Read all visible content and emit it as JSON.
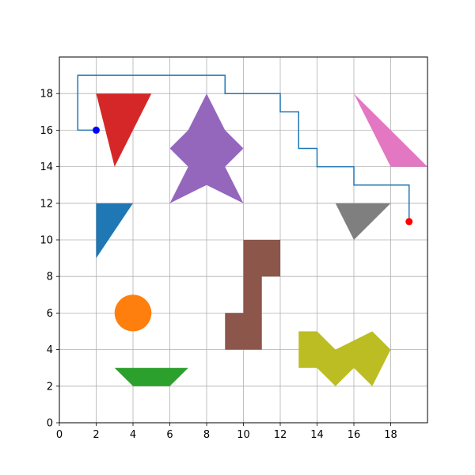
{
  "chart_data": {
    "type": "scatter",
    "title": "",
    "xlabel": "",
    "ylabel": "",
    "xlim": [
      0,
      20
    ],
    "ylim": [
      0,
      20
    ],
    "xticks": [
      0,
      2,
      4,
      6,
      8,
      10,
      12,
      14,
      16,
      18
    ],
    "yticks": [
      0,
      2,
      4,
      6,
      8,
      10,
      12,
      14,
      16,
      18
    ],
    "grid": true,
    "path": {
      "color": "#1f77b4",
      "points": [
        [
          2,
          16
        ],
        [
          1,
          16
        ],
        [
          1,
          19
        ],
        [
          9,
          19
        ],
        [
          9,
          18
        ],
        [
          12,
          18
        ],
        [
          12,
          17
        ],
        [
          13,
          17
        ],
        [
          13,
          15
        ],
        [
          14,
          15
        ],
        [
          14,
          14
        ],
        [
          16,
          14
        ],
        [
          16,
          13
        ],
        [
          19,
          13
        ],
        [
          19,
          11
        ]
      ]
    },
    "start_point": {
      "x": 2,
      "y": 16,
      "color": "#0000ff"
    },
    "end_point": {
      "x": 19,
      "y": 11,
      "color": "#ff0000"
    },
    "obstacles": [
      {
        "shape": "polygon",
        "color": "#d62728",
        "points": [
          [
            2,
            18
          ],
          [
            5,
            18
          ],
          [
            3,
            14
          ]
        ]
      },
      {
        "shape": "polygon",
        "color": "#9467bd",
        "points": [
          [
            8,
            18
          ],
          [
            9,
            16
          ],
          [
            10,
            15
          ],
          [
            9,
            14
          ],
          [
            10,
            12
          ],
          [
            8,
            13
          ],
          [
            6,
            12
          ],
          [
            7,
            14
          ],
          [
            6,
            15
          ],
          [
            7,
            16
          ]
        ]
      },
      {
        "shape": "polygon",
        "color": "#e377c2",
        "points": [
          [
            16,
            18
          ],
          [
            18,
            14
          ],
          [
            20,
            14
          ]
        ]
      },
      {
        "shape": "polygon",
        "color": "#1f77b4",
        "points": [
          [
            2,
            12
          ],
          [
            4,
            12
          ],
          [
            2,
            9
          ]
        ]
      },
      {
        "shape": "polygon",
        "color": "#7f7f7f",
        "points": [
          [
            15,
            12
          ],
          [
            18,
            12
          ],
          [
            16,
            10
          ]
        ]
      },
      {
        "shape": "polygon",
        "color": "#8c564b",
        "points": [
          [
            10,
            10
          ],
          [
            12,
            10
          ],
          [
            12,
            8
          ],
          [
            11,
            8
          ],
          [
            11,
            4
          ],
          [
            9,
            4
          ],
          [
            9,
            6
          ],
          [
            10,
            6
          ]
        ]
      },
      {
        "shape": "circle",
        "color": "#ff7f0e",
        "center": [
          4,
          6
        ],
        "radius": 1
      },
      {
        "shape": "polygon",
        "color": "#bcbd22",
        "points": [
          [
            13,
            5
          ],
          [
            14,
            5
          ],
          [
            15,
            4
          ],
          [
            17,
            5
          ],
          [
            18,
            4
          ],
          [
            17,
            2
          ],
          [
            16,
            3
          ],
          [
            15,
            2
          ],
          [
            14,
            3
          ],
          [
            13,
            3
          ]
        ]
      },
      {
        "shape": "polygon",
        "color": "#2ca02c",
        "points": [
          [
            3,
            3
          ],
          [
            7,
            3
          ],
          [
            6,
            2
          ],
          [
            4,
            2
          ]
        ]
      }
    ]
  }
}
